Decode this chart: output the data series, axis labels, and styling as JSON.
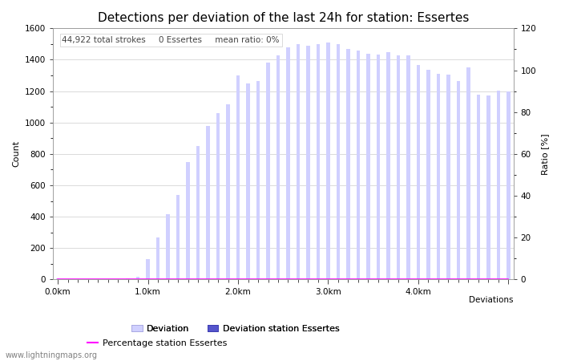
{
  "title": "Detections per deviation of the last 24h for station: Essertes",
  "ylabel_left": "Count",
  "ylabel_right": "Ratio [%]",
  "annotation": "44,922 total strokes     0 Essertes     mean ratio: 0%",
  "watermark": "www.lightningmaps.org",
  "ylim_left": [
    0,
    1600
  ],
  "ylim_right": [
    0,
    120
  ],
  "xtick_positions": [
    0,
    9,
    18,
    27,
    36,
    45
  ],
  "xtick_labels": [
    "0.0km",
    "1.0km",
    "2.0km",
    "3.0km",
    "4.0km",
    ""
  ],
  "xlabel_deviations": "Deviations",
  "bar_values": [
    5,
    2,
    2,
    2,
    2,
    2,
    2,
    5,
    20,
    130,
    270,
    415,
    540,
    750,
    850,
    980,
    1060,
    1115,
    1300,
    1250,
    1265,
    1380,
    1430,
    1480,
    1500,
    1490,
    1500,
    1510,
    1500,
    1470,
    1460,
    1440,
    1435,
    1450,
    1430,
    1430,
    1365,
    1335,
    1310,
    1305,
    1265,
    1350,
    1180,
    1175,
    1205,
    1200
  ],
  "station_bar_values": [
    0,
    0,
    0,
    0,
    0,
    0,
    0,
    0,
    0,
    0,
    0,
    0,
    0,
    0,
    0,
    0,
    0,
    0,
    0,
    0,
    0,
    0,
    0,
    0,
    0,
    0,
    0,
    0,
    0,
    0,
    0,
    0,
    0,
    0,
    0,
    0,
    0,
    0,
    0,
    0,
    0,
    0,
    0,
    0,
    0,
    0
  ],
  "ratio_values": [
    0,
    0,
    0,
    0,
    0,
    0,
    0,
    0,
    0,
    0,
    0,
    0,
    0,
    0,
    0,
    0,
    0,
    0,
    0,
    0,
    0,
    0,
    0,
    0,
    0,
    0,
    0,
    0,
    0,
    0,
    0,
    0,
    0,
    0,
    0,
    0,
    0,
    0,
    0,
    0,
    0,
    0,
    0,
    0,
    0,
    0
  ],
  "bar_color_light": "#d0d0ff",
  "bar_color_dark": "#5555cc",
  "bar_edge_color_light": "#a0a0dd",
  "bar_edge_color_dark": "#3333aa",
  "ratio_color": "#ff00ff",
  "grid_color": "#cccccc",
  "bg_color": "#ffffff",
  "ytick_left": [
    0,
    200,
    400,
    600,
    800,
    1000,
    1200,
    1400,
    1600
  ],
  "ytick_right": [
    0,
    20,
    40,
    60,
    80,
    100,
    120
  ],
  "title_fontsize": 11,
  "label_fontsize": 8,
  "tick_fontsize": 7.5,
  "annotation_fontsize": 7.5
}
